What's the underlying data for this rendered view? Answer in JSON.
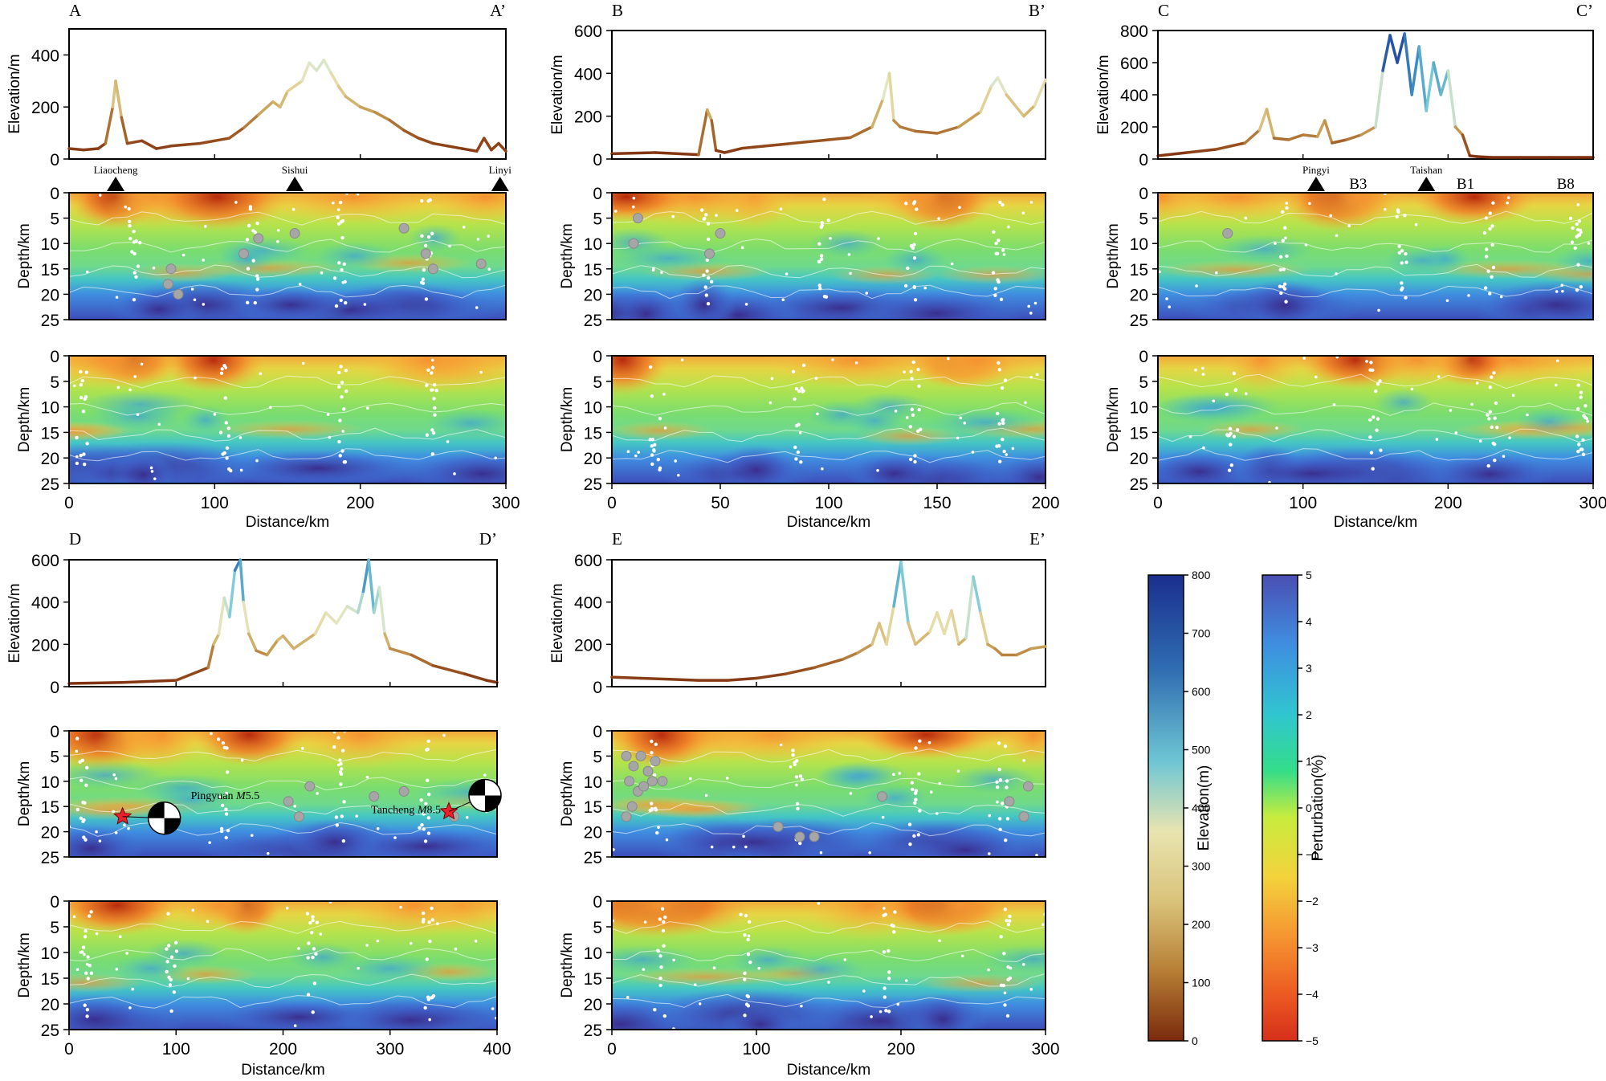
{
  "chart_data": [
    {
      "type": "line",
      "id": "A",
      "profile_start_label": "A",
      "profile_end_label": "A’",
      "xlabel": "Distance/km",
      "elevation": {
        "ylabel": "Elevation/m",
        "ylim": [
          0,
          500
        ],
        "yticks": [
          0,
          200,
          400
        ],
        "x": [
          0,
          10,
          20,
          25,
          30,
          32,
          36,
          40,
          50,
          60,
          70,
          80,
          90,
          100,
          110,
          120,
          130,
          140,
          145,
          150,
          160,
          165,
          170,
          175,
          180,
          185,
          190,
          200,
          210,
          220,
          230,
          240,
          250,
          260,
          270,
          280,
          285,
          290,
          295,
          300
        ],
        "values": [
          40,
          35,
          40,
          60,
          200,
          300,
          160,
          60,
          70,
          40,
          50,
          55,
          60,
          70,
          80,
          120,
          170,
          220,
          200,
          260,
          300,
          370,
          340,
          380,
          330,
          280,
          240,
          200,
          180,
          150,
          110,
          80,
          60,
          50,
          40,
          30,
          80,
          35,
          60,
          30
        ]
      },
      "stations": [
        {
          "name": "Liaocheng",
          "x": 32
        },
        {
          "name": "Sishui",
          "x": 155
        },
        {
          "name": "Linyi",
          "x": 296
        }
      ],
      "sections": [
        {
          "ylabel": "Depth/km",
          "ylim": [
            0,
            25
          ],
          "yticks": [
            0,
            5,
            10,
            15,
            20,
            25
          ],
          "earthquakes_gray": [
            [
              70,
              15
            ],
            [
              68,
              18
            ],
            [
              75,
              20
            ],
            [
              120,
              12
            ],
            [
              130,
              9
            ],
            [
              155,
              8
            ],
            [
              230,
              7
            ],
            [
              245,
              12
            ],
            [
              250,
              15
            ],
            [
              283,
              14
            ]
          ]
        },
        {
          "ylabel": "Depth/km",
          "ylim": [
            0,
            25
          ],
          "yticks": [
            0,
            5,
            10,
            15,
            20,
            25
          ],
          "xticks": [
            0,
            100,
            200,
            300
          ]
        }
      ]
    },
    {
      "type": "line",
      "id": "B",
      "profile_start_label": "B",
      "profile_end_label": "B’",
      "xlabel": "Distance/km",
      "elevation": {
        "ylabel": "Elevation/m",
        "ylim": [
          0,
          600
        ],
        "yticks": [
          0,
          200,
          400,
          600
        ],
        "x": [
          0,
          20,
          40,
          44,
          46,
          48,
          52,
          60,
          70,
          80,
          90,
          100,
          110,
          120,
          125,
          128,
          130,
          133,
          140,
          150,
          160,
          170,
          175,
          178,
          182,
          190,
          195,
          200
        ],
        "values": [
          25,
          30,
          20,
          230,
          180,
          40,
          30,
          50,
          60,
          70,
          80,
          90,
          100,
          150,
          280,
          400,
          180,
          150,
          130,
          120,
          150,
          220,
          340,
          380,
          300,
          200,
          250,
          370
        ]
      },
      "sections": [
        {
          "ylabel": "Depth/km",
          "ylim": [
            0,
            25
          ],
          "yticks": [
            0,
            5,
            10,
            15,
            20,
            25
          ],
          "earthquakes_gray": [
            [
              12,
              5
            ],
            [
              10,
              10
            ],
            [
              45,
              12
            ],
            [
              50,
              8
            ]
          ]
        },
        {
          "ylabel": "Depth/km",
          "ylim": [
            0,
            25
          ],
          "yticks": [
            0,
            5,
            10,
            15,
            20,
            25
          ],
          "xticks": [
            0,
            50,
            100,
            150,
            200
          ]
        }
      ]
    },
    {
      "type": "line",
      "id": "C",
      "profile_start_label": "C",
      "profile_end_label": "C’",
      "xlabel": "Distance/km",
      "elevation": {
        "ylabel": "Elevation/m",
        "ylim": [
          0,
          800
        ],
        "yticks": [
          0,
          200,
          400,
          600,
          800
        ],
        "x": [
          0,
          20,
          40,
          60,
          70,
          75,
          80,
          90,
          100,
          110,
          115,
          120,
          130,
          140,
          150,
          155,
          160,
          165,
          170,
          175,
          180,
          185,
          190,
          195,
          200,
          205,
          210,
          215,
          220,
          230,
          250,
          270,
          290,
          300
        ],
        "values": [
          20,
          40,
          60,
          100,
          180,
          310,
          130,
          120,
          150,
          140,
          240,
          100,
          120,
          150,
          200,
          550,
          770,
          600,
          780,
          400,
          700,
          300,
          600,
          400,
          550,
          200,
          150,
          20,
          15,
          10,
          10,
          10,
          10,
          10
        ]
      },
      "stations": [
        {
          "name": "Pingyi",
          "x": 109
        },
        {
          "name": "Taishan",
          "x": 185
        }
      ],
      "borehole_labels": [
        {
          "name": "B3",
          "x": 138
        },
        {
          "name": "B1",
          "x": 212
        },
        {
          "name": "B8",
          "x": 281
        }
      ],
      "sections": [
        {
          "ylabel": "Depth/km",
          "ylim": [
            0,
            25
          ],
          "yticks": [
            0,
            5,
            10,
            15,
            20,
            25
          ],
          "earthquakes_gray": [
            [
              48,
              8
            ]
          ]
        },
        {
          "ylabel": "Depth/km",
          "ylim": [
            0,
            25
          ],
          "yticks": [
            0,
            5,
            10,
            15,
            20,
            25
          ],
          "xticks": [
            0,
            100,
            200,
            300
          ]
        }
      ]
    },
    {
      "type": "line",
      "id": "D",
      "profile_start_label": "D",
      "profile_end_label": "D’",
      "xlabel": "Distance/km",
      "elevation": {
        "ylabel": "Elevation/m",
        "ylim": [
          0,
          600
        ],
        "yticks": [
          0,
          200,
          400,
          600
        ],
        "x": [
          0,
          50,
          100,
          130,
          135,
          140,
          145,
          150,
          155,
          160,
          163,
          168,
          175,
          185,
          195,
          200,
          210,
          230,
          240,
          250,
          260,
          270,
          275,
          280,
          285,
          290,
          295,
          300,
          320,
          340,
          370,
          390,
          400
        ],
        "values": [
          15,
          20,
          30,
          90,
          200,
          250,
          420,
          330,
          550,
          600,
          400,
          250,
          170,
          150,
          220,
          240,
          180,
          250,
          350,
          300,
          380,
          350,
          450,
          600,
          350,
          470,
          250,
          180,
          150,
          100,
          60,
          30,
          20
        ]
      },
      "events": [
        {
          "label": "Pingyuan",
          "magnitude": "5.5",
          "x": 50,
          "depth": 17
        },
        {
          "label": "Tancheng",
          "magnitude": "8.5",
          "x": 355,
          "depth": 16
        }
      ],
      "sections": [
        {
          "ylabel": "Depth/km",
          "ylim": [
            0,
            25
          ],
          "yticks": [
            0,
            5,
            10,
            15,
            20,
            25
          ],
          "earthquakes_gray": [
            [
              205,
              14
            ],
            [
              215,
              17
            ],
            [
              225,
              11
            ],
            [
              285,
              13
            ],
            [
              313,
              12
            ],
            [
              360,
              17
            ]
          ]
        },
        {
          "ylabel": "Depth/km",
          "ylim": [
            0,
            25
          ],
          "yticks": [
            0,
            5,
            10,
            15,
            20,
            25
          ],
          "xticks": [
            0,
            100,
            200,
            300,
            400
          ]
        }
      ]
    },
    {
      "type": "line",
      "id": "E",
      "profile_start_label": "E",
      "profile_end_label": "E’",
      "xlabel": "Distance/km",
      "elevation": {
        "ylabel": "Elevation/m",
        "ylim": [
          0,
          600
        ],
        "yticks": [
          0,
          200,
          400,
          600
        ],
        "x": [
          0,
          20,
          40,
          60,
          80,
          100,
          120,
          140,
          160,
          170,
          180,
          185,
          190,
          195,
          200,
          205,
          210,
          220,
          225,
          230,
          235,
          240,
          245,
          250,
          255,
          260,
          265,
          270,
          280,
          290,
          300
        ],
        "values": [
          45,
          40,
          35,
          30,
          30,
          40,
          60,
          90,
          130,
          160,
          200,
          300,
          200,
          380,
          590,
          300,
          200,
          260,
          350,
          250,
          360,
          200,
          230,
          520,
          350,
          200,
          180,
          150,
          150,
          180,
          190
        ]
      },
      "sections": [
        {
          "ylabel": "Depth/km",
          "ylim": [
            0,
            25
          ],
          "yticks": [
            0,
            5,
            10,
            15,
            20,
            25
          ],
          "earthquakes_gray": [
            [
              10,
              5
            ],
            [
              15,
              7
            ],
            [
              20,
              5
            ],
            [
              25,
              8
            ],
            [
              30,
              6
            ],
            [
              12,
              10
            ],
            [
              18,
              12
            ],
            [
              22,
              11
            ],
            [
              28,
              10
            ],
            [
              35,
              10
            ],
            [
              14,
              15
            ],
            [
              10,
              17
            ],
            [
              115,
              19
            ],
            [
              130,
              21
            ],
            [
              140,
              21
            ],
            [
              187,
              13
            ],
            [
              275,
              14
            ],
            [
              285,
              17
            ],
            [
              288,
              11
            ]
          ]
        },
        {
          "ylabel": "Depth/km",
          "ylim": [
            0,
            25
          ],
          "yticks": [
            0,
            5,
            10,
            15,
            20,
            25
          ],
          "xticks": [
            0,
            100,
            200,
            300
          ]
        }
      ]
    }
  ],
  "colorbars": {
    "elevation": {
      "label": "Elevation(m)",
      "range": [
        0,
        800
      ],
      "ticks": [
        "800",
        "700",
        "600",
        "500",
        "400",
        "300",
        "200",
        "100",
        "0"
      ]
    },
    "perturbation": {
      "label": "Perturbation(%)",
      "range": [
        -5,
        5
      ],
      "ticks": [
        "5",
        "4",
        "3",
        "2",
        "1",
        "0",
        "−1",
        "−2",
        "−3",
        "−4",
        "−5"
      ]
    }
  },
  "colors": {
    "elev_low": "#8b4513",
    "elev_mid": "#e8e4b0",
    "elev_high": "#1a2f8e",
    "pert_neg": "#d62f1a",
    "pert_zero": "#d0ed3f",
    "pert_pos": "#3e3aa0",
    "event_star": "#e8212b",
    "gray_event": "#a6a6a6"
  }
}
